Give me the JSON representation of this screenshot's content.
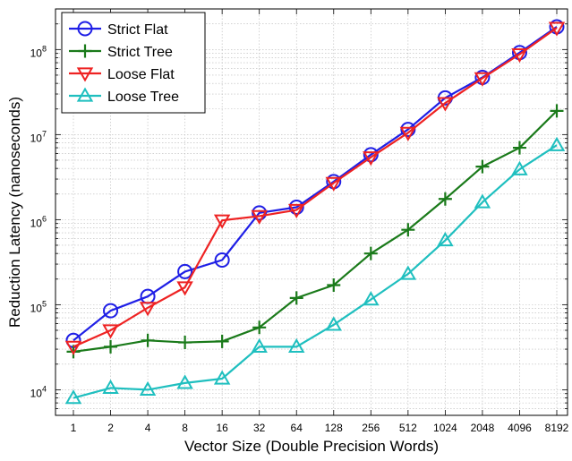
{
  "chart_data": {
    "type": "line",
    "yscale": "log",
    "xlabel": "Vector Size (Double Precision Words)",
    "ylabel": "Reduction Latency (nanoseconds)",
    "categories": [
      "1",
      "2",
      "4",
      "8",
      "16",
      "32",
      "64",
      "128",
      "256",
      "512",
      "1024",
      "2048",
      "4096",
      "8192"
    ],
    "ylim": [
      5000,
      300000000
    ],
    "y_tick_labels": [
      {
        "value": 10000,
        "base": "10",
        "exp": "4"
      },
      {
        "value": 100000,
        "base": "10",
        "exp": "5"
      },
      {
        "value": 1000000,
        "base": "10",
        "exp": "6"
      },
      {
        "value": 10000000,
        "base": "10",
        "exp": "7"
      },
      {
        "value": 100000000,
        "base": "10",
        "exp": "8"
      }
    ],
    "grid": true,
    "legend_position": "top-left",
    "series": [
      {
        "name": "Strict Flat",
        "color": "#1f1fe6",
        "marker": "circle",
        "values": [
          38000,
          85000,
          125000,
          245000,
          335000,
          1200000,
          1400000,
          2800000,
          5800000,
          11500000,
          27000000,
          47000000,
          92000000,
          185000000
        ]
      },
      {
        "name": "Strict Tree",
        "color": "#1a7a1a",
        "marker": "plus",
        "values": [
          28000,
          32000,
          38000,
          36000,
          37000,
          54000,
          120000,
          170000,
          400000,
          760000,
          1750000,
          4200000,
          7000000,
          19000000
        ]
      },
      {
        "name": "Loose Flat",
        "color": "#ee2222",
        "marker": "triangle-down",
        "values": [
          32000,
          50000,
          92000,
          160000,
          980000,
          1100000,
          1300000,
          2700000,
          5400000,
          10500000,
          23500000,
          46000000,
          88000000,
          180000000
        ]
      },
      {
        "name": "Loose Tree",
        "color": "#1fbfbf",
        "marker": "triangle-up",
        "values": [
          8000,
          10500,
          10000,
          12000,
          13500,
          32000,
          32000,
          58000,
          115000,
          230000,
          570000,
          1600000,
          3900000,
          7500000
        ]
      }
    ]
  }
}
